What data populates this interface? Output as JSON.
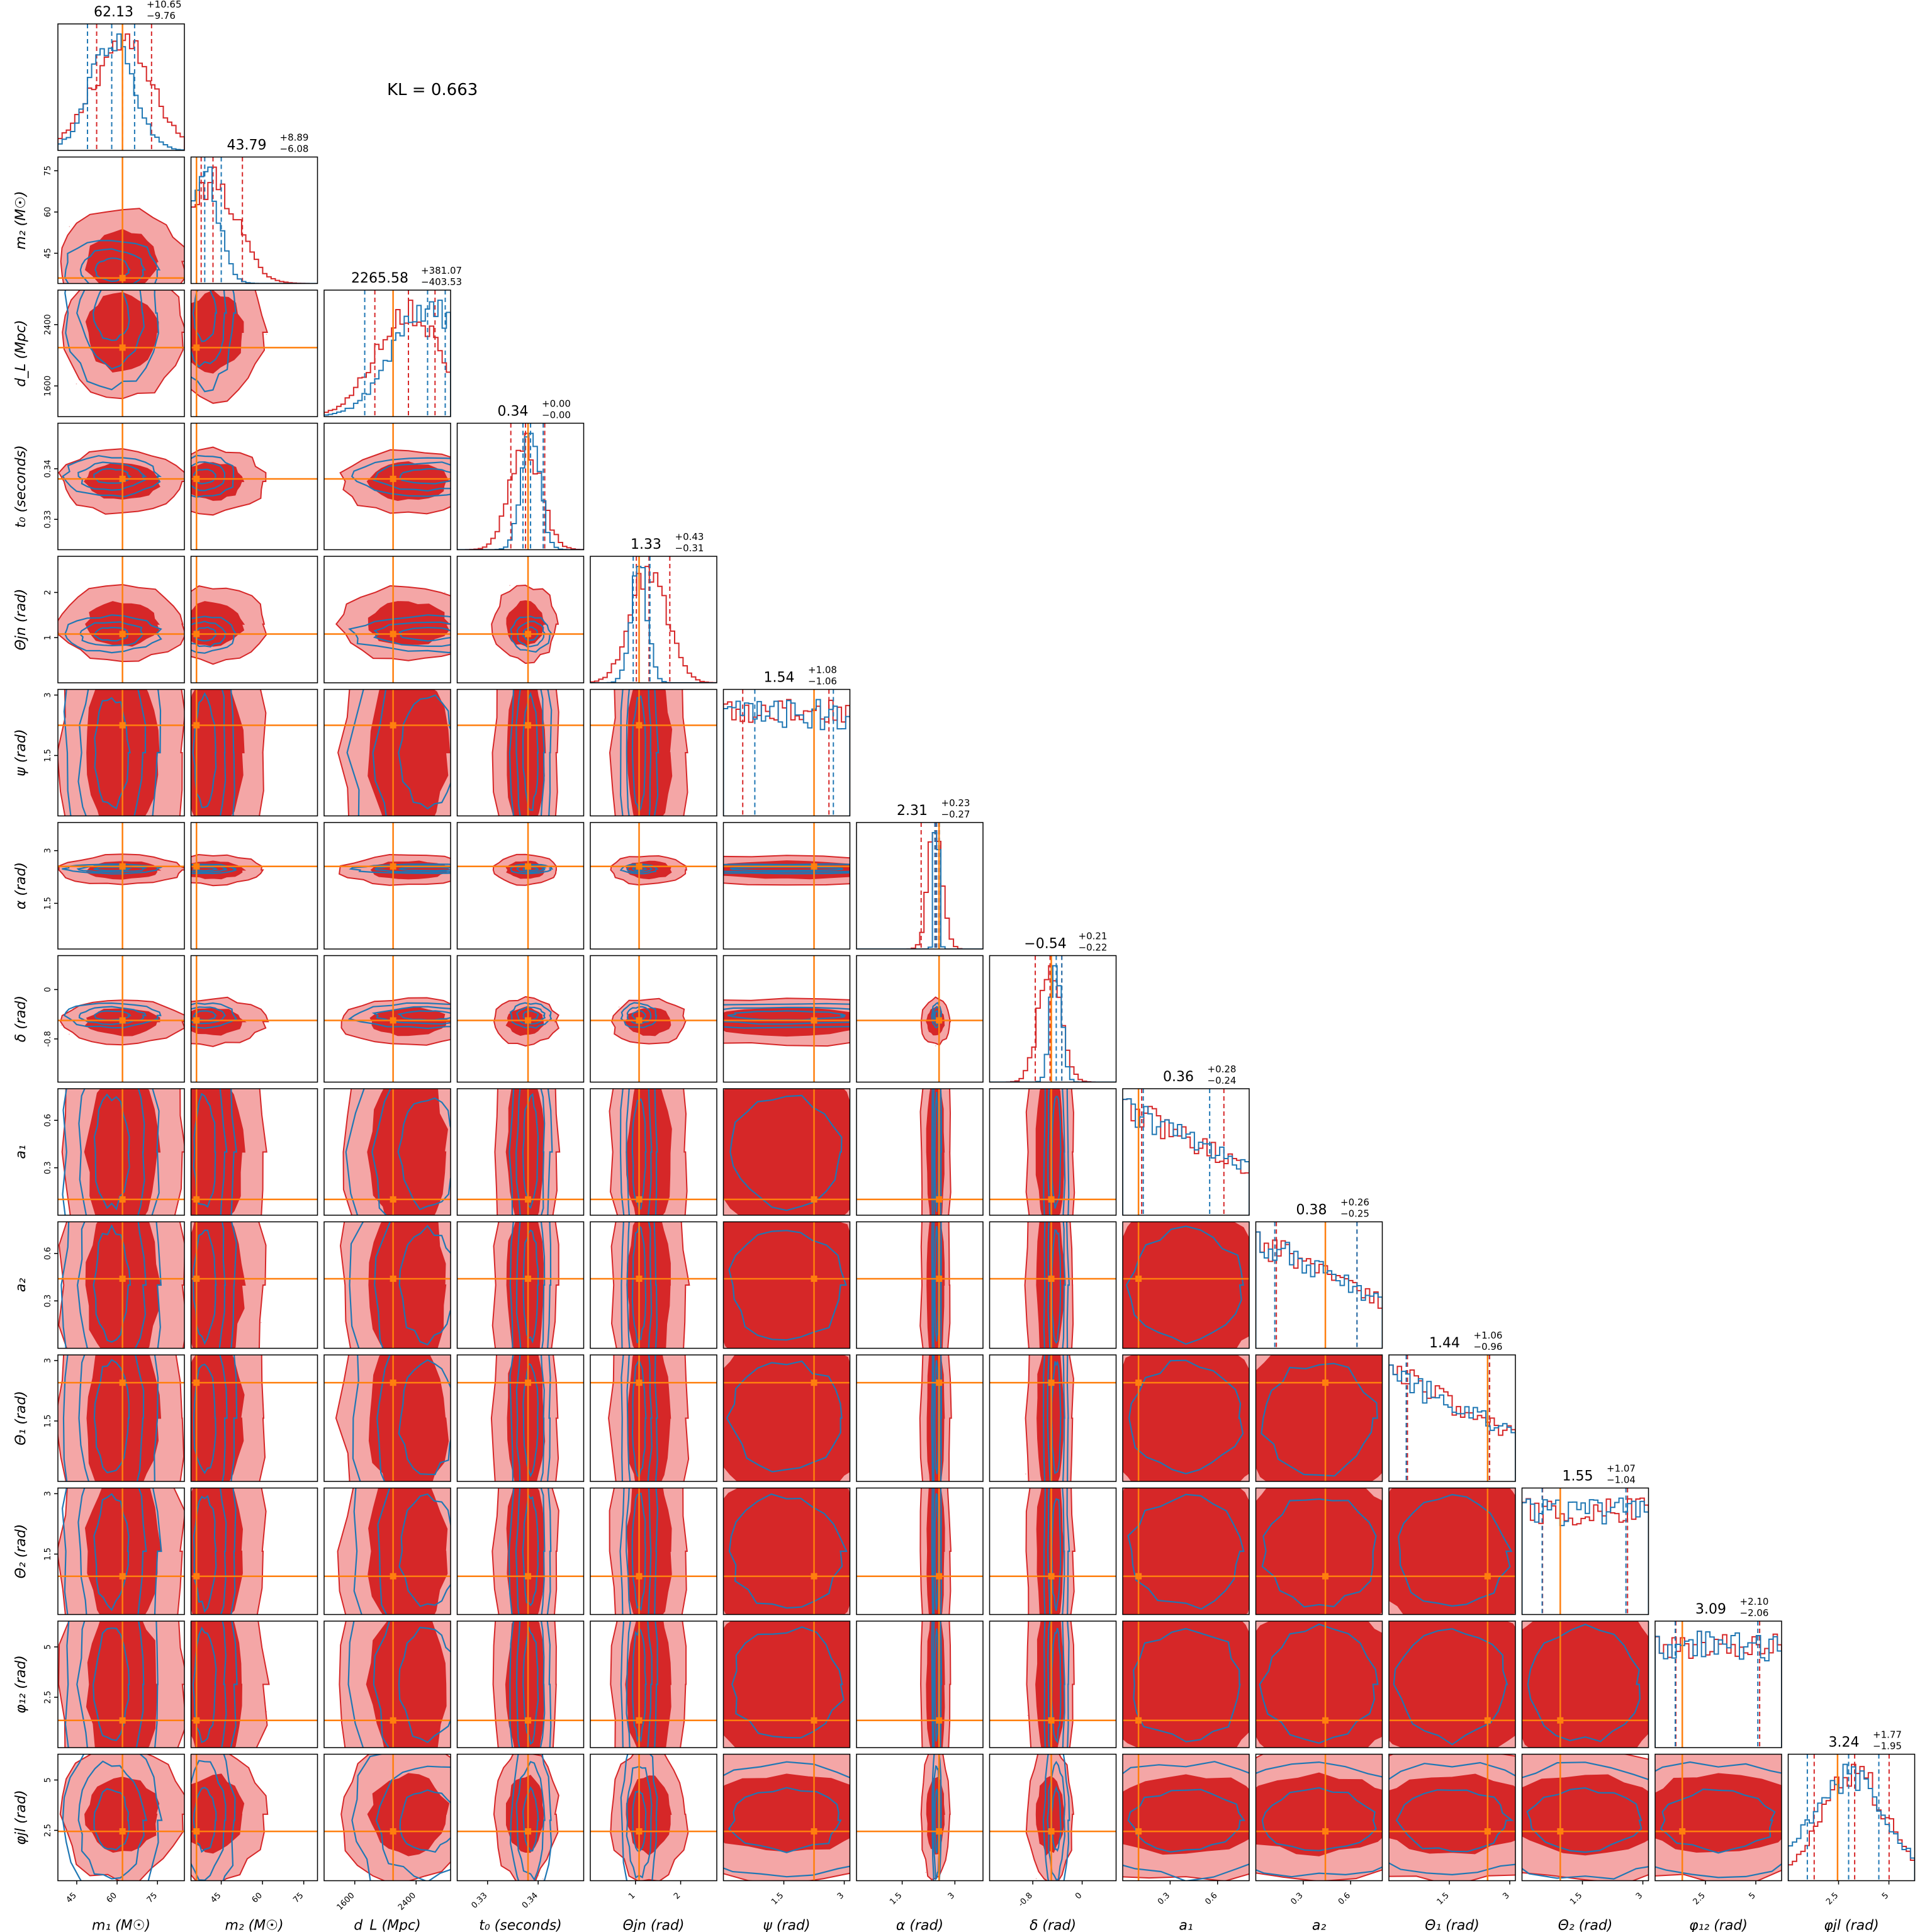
{
  "annotation": "KL = 0.663",
  "colors": {
    "series_a": "#d62728",
    "series_b": "#1f77b4",
    "truth": "#ff7f0e",
    "frame": "#000000"
  },
  "chart_data": {
    "type": "corner",
    "series": [
      {
        "name": "",
        "color": "#d62728",
        "style": "filled-contours + step histograms"
      },
      {
        "name": "",
        "color": "#1f77b4",
        "style": "line contours + step histograms"
      }
    ],
    "params": [
      {
        "label": "m₁ (M☉)",
        "title": {
          "median": "62.13",
          "plus": "+10.65",
          "minus": "−9.76"
        },
        "range": [
          38,
          85
        ],
        "ticks": [
          45,
          60,
          75
        ],
        "truth": 62.0,
        "red": {
          "mu": 62,
          "sd": 11,
          "lo": 52.4,
          "hi": 72.8,
          "shape": "gauss"
        },
        "blue": {
          "mu": 58,
          "sd": 8,
          "lo": 49,
          "hi": 66.5,
          "shape": "gauss"
        }
      },
      {
        "label": "m₂ (M☉)",
        "title": {
          "median": "43.79",
          "plus": "+8.89",
          "minus": "−6.08"
        },
        "range": [
          34,
          80
        ],
        "ticks": [
          45,
          60,
          75
        ],
        "truth": 36.0,
        "red": {
          "mu": 42,
          "sd": 9,
          "lo": 37.7,
          "hi": 52.7,
          "shape": "gauss"
        },
        "blue": {
          "mu": 39,
          "sd": 5,
          "lo": 36,
          "hi": 45,
          "shape": "gauss"
        }
      },
      {
        "label": "d_L (Mpc)",
        "title": {
          "median": "2265.58",
          "plus": "+381.07",
          "minus": "−403.53"
        },
        "range": [
          1200,
          2850
        ],
        "ticks": [
          1600,
          2400
        ],
        "truth": 2100,
        "red": {
          "mu": 2300,
          "sd": 420,
          "lo": 1862,
          "hi": 2647,
          "shape": "gauss"
        },
        "blue": {
          "mu": 2550,
          "sd": 450,
          "lo": 1730,
          "hi": 2780,
          "shape": "gauss"
        }
      },
      {
        "label": "t₀ (seconds)",
        "title": {
          "median": "0.34",
          "plus": "+0.00",
          "minus": "−0.00"
        },
        "range": [
          0.324,
          0.349
        ],
        "ticks": [
          0.33,
          0.34
        ],
        "truth": 0.338,
        "red": {
          "mu": 0.3375,
          "sd": 0.003,
          "lo": 0.3346,
          "hi": 0.3413,
          "shape": "gauss"
        },
        "blue": {
          "mu": 0.3385,
          "sd": 0.0018,
          "lo": 0.337,
          "hi": 0.341,
          "shape": "gauss"
        }
      },
      {
        "label": "Θjn (rad)",
        "title": {
          "median": "1.33",
          "plus": "+0.43",
          "minus": "−0.31"
        },
        "range": [
          0.0,
          2.8
        ],
        "ticks": [
          1,
          2
        ],
        "truth": 1.08,
        "red": {
          "mu": 1.3,
          "sd": 0.4,
          "lo": 1.02,
          "hi": 1.76,
          "shape": "gauss"
        },
        "blue": {
          "mu": 1.08,
          "sd": 0.18,
          "lo": 0.95,
          "hi": 1.32,
          "shape": "gauss"
        }
      },
      {
        "label": "ψ (rad)",
        "title": {
          "median": "1.54",
          "plus": "+1.08",
          "minus": "−1.06"
        },
        "range": [
          0.0,
          3.14
        ],
        "ticks": [
          1.5,
          3.0
        ],
        "truth": 2.25,
        "red": {
          "mu": 1.57,
          "sd": 5,
          "lo": 0.48,
          "hi": 2.62,
          "shape": "flat"
        },
        "blue": {
          "mu": 1.57,
          "sd": 5,
          "lo": 0.78,
          "hi": 2.73,
          "shape": "flat"
        }
      },
      {
        "label": "α (rad)",
        "title": {
          "median": "2.31",
          "plus": "+0.23",
          "minus": "−0.27"
        },
        "range": [
          0.2,
          3.8
        ],
        "ticks": [
          1.5,
          3.0
        ],
        "truth": 2.55,
        "red": {
          "mu": 2.45,
          "sd": 0.2,
          "lo": 2.04,
          "hi": 2.54,
          "shape": "gauss"
        },
        "blue": {
          "mu": 2.48,
          "sd": 0.06,
          "lo": 2.43,
          "hi": 2.56,
          "shape": "gauss"
        }
      },
      {
        "label": "δ (rad)",
        "title": {
          "median": "−0.54",
          "plus": "+0.21",
          "minus": "−0.22"
        },
        "range": [
          -1.5,
          0.55
        ],
        "ticks": [
          -0.8,
          0.0
        ],
        "truth": -0.5,
        "red": {
          "mu": -0.52,
          "sd": 0.18,
          "lo": -0.76,
          "hi": -0.33,
          "shape": "gauss"
        },
        "blue": {
          "mu": -0.42,
          "sd": 0.09,
          "lo": -0.5,
          "hi": -0.33,
          "shape": "gauss"
        }
      },
      {
        "label": "a₁",
        "title": {
          "median": "0.36",
          "plus": "+0.28",
          "minus": "−0.24"
        },
        "range": [
          0.0,
          0.8
        ],
        "ticks": [
          0.3,
          0.6
        ],
        "truth": 0.1,
        "red": {
          "mu": 0.0,
          "sd": 0.55,
          "lo": 0.12,
          "hi": 0.64,
          "shape": "decr"
        },
        "blue": {
          "mu": 0.0,
          "sd": 0.4,
          "lo": 0.13,
          "hi": 0.55,
          "shape": "decr"
        }
      },
      {
        "label": "a₂",
        "title": {
          "median": "0.38",
          "plus": "+0.26",
          "minus": "−0.25"
        },
        "range": [
          0.0,
          0.8
        ],
        "ticks": [
          0.3,
          0.6
        ],
        "truth": 0.44,
        "red": {
          "mu": 0.0,
          "sd": 0.6,
          "lo": 0.13,
          "hi": 0.64,
          "shape": "decr"
        },
        "blue": {
          "mu": 0.0,
          "sd": 0.6,
          "lo": 0.12,
          "hi": 0.64,
          "shape": "decr"
        }
      },
      {
        "label": "Θ₁ (rad)",
        "title": {
          "median": "1.44",
          "plus": "+1.06",
          "minus": "−0.96"
        },
        "range": [
          0.0,
          3.14
        ],
        "ticks": [
          1.5,
          3.0
        ],
        "truth": 2.45,
        "red": {
          "mu": 0.0,
          "sd": 2.5,
          "lo": 0.46,
          "hi": 2.5,
          "shape": "decr"
        },
        "blue": {
          "mu": 0.0,
          "sd": 2.5,
          "lo": 0.43,
          "hi": 2.46,
          "shape": "decr"
        }
      },
      {
        "label": "Θ₂ (rad)",
        "title": {
          "median": "1.55",
          "plus": "+1.07",
          "minus": "−1.04"
        },
        "range": [
          0.0,
          3.14
        ],
        "ticks": [
          1.5,
          3.0
        ],
        "truth": 0.95,
        "red": {
          "mu": 1.57,
          "sd": 5,
          "lo": 0.51,
          "hi": 2.62,
          "shape": "flat"
        },
        "blue": {
          "mu": 1.57,
          "sd": 5,
          "lo": 0.5,
          "hi": 2.58,
          "shape": "flat"
        }
      },
      {
        "label": "φ₁₂ (rad)",
        "title": {
          "median": "3.09",
          "plus": "+2.10",
          "minus": "−2.06"
        },
        "range": [
          0.0,
          6.28
        ],
        "ticks": [
          2.5,
          5.0
        ],
        "truth": 1.35,
        "red": {
          "mu": 3.14,
          "sd": 9,
          "lo": 1.03,
          "hi": 5.19,
          "shape": "flat"
        },
        "blue": {
          "mu": 3.14,
          "sd": 9,
          "lo": 1.0,
          "hi": 5.1,
          "shape": "flat"
        }
      },
      {
        "label": "φjl (rad)",
        "title": {
          "median": "3.24",
          "plus": "+1.77",
          "minus": "−1.95"
        },
        "range": [
          0.0,
          6.28
        ],
        "ticks": [
          2.5,
          5.0
        ],
        "truth": 2.45,
        "red": {
          "mu": 3.3,
          "sd": 1.6,
          "lo": 1.29,
          "hi": 5.01,
          "shape": "gauss"
        },
        "blue": {
          "mu": 3.0,
          "sd": 1.9,
          "lo": 0.95,
          "hi": 4.5,
          "shape": "gauss"
        }
      }
    ]
  }
}
